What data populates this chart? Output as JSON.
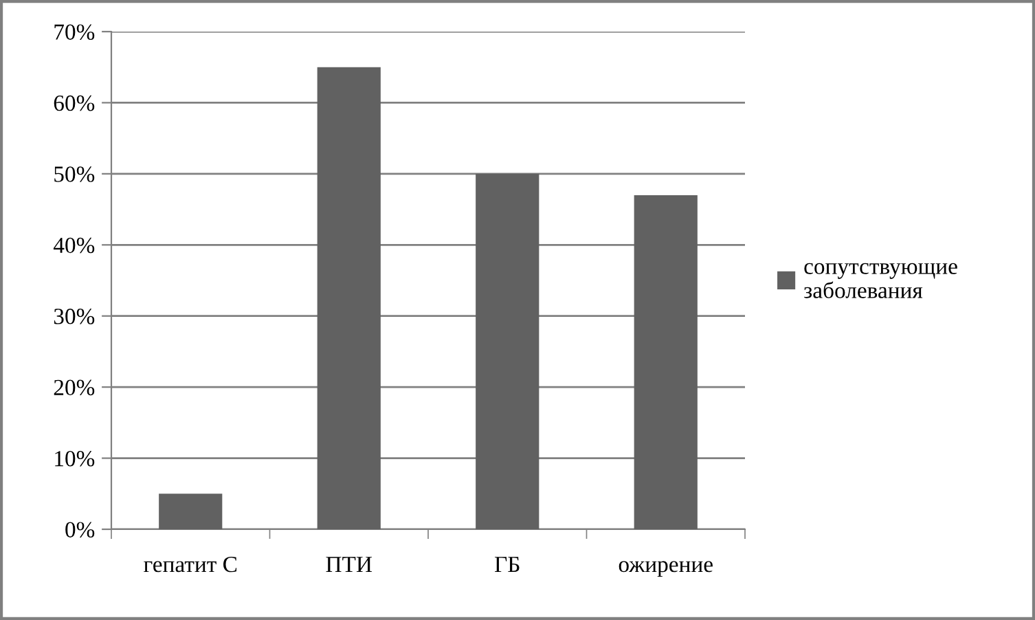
{
  "chart_data": {
    "type": "bar",
    "categories": [
      "гепатит С",
      "ПТИ",
      "ГБ",
      "ожирение"
    ],
    "series": [
      {
        "name": "сопутствующие заболевания",
        "color": "#616161",
        "values": [
          5,
          65,
          50,
          47
        ]
      }
    ],
    "ylim": [
      0,
      70
    ],
    "yticks": [
      {
        "value": 0,
        "label": "0%"
      },
      {
        "value": 10,
        "label": "10%"
      },
      {
        "value": 20,
        "label": "20%"
      },
      {
        "value": 30,
        "label": "30%"
      },
      {
        "value": 40,
        "label": "40%"
      },
      {
        "value": 50,
        "label": "50%"
      },
      {
        "value": 60,
        "label": "60%"
      },
      {
        "value": 70,
        "label": "70%"
      }
    ],
    "grid": "y",
    "legend": "right"
  }
}
